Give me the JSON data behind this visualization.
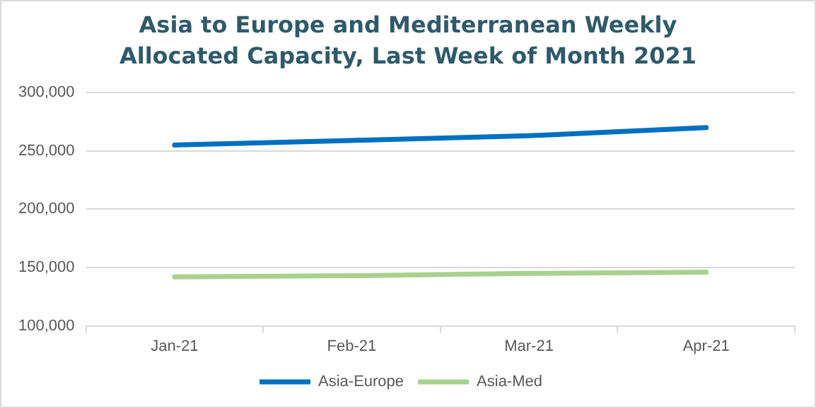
{
  "chart_data": {
    "type": "line",
    "title": "Asia to Europe and Mediterranean  Weekly Allocated Capacity, Last Week of Month 2021",
    "categories": [
      "Jan-21",
      "Feb-21",
      "Mar-21",
      "Apr-21"
    ],
    "series": [
      {
        "name": "Asia-Europe",
        "color": "#0070c0",
        "values": [
          255000,
          259000,
          263000,
          270000
        ]
      },
      {
        "name": "Asia-Med",
        "color": "#a9d18e",
        "values": [
          142000,
          143000,
          145000,
          146000
        ]
      }
    ],
    "ylim": [
      100000,
      300000
    ],
    "yticks": [
      {
        "value": 100000,
        "label": "100,000"
      },
      {
        "value": 150000,
        "label": "150,000"
      },
      {
        "value": 200000,
        "label": "200,000"
      },
      {
        "value": 250000,
        "label": "250,000"
      },
      {
        "value": 300000,
        "label": "300,000"
      }
    ],
    "grid": "y",
    "legend": "bottom",
    "marker": "none",
    "line_style": "solid"
  }
}
